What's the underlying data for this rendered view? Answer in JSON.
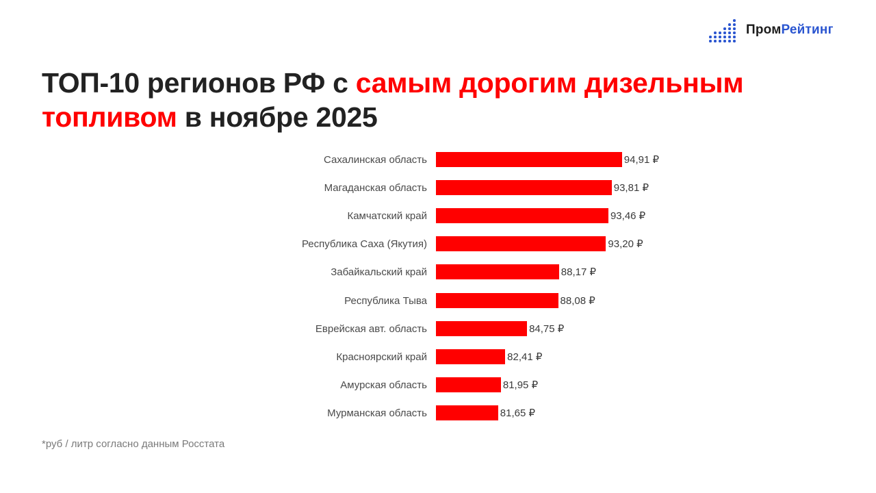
{
  "brand": {
    "logo_icon": "dot-bars-icon",
    "name_part1": "Пром",
    "name_part2": "Рейтинг",
    "accent_color": "#2a55d0"
  },
  "title": {
    "part1": "ТОП-10 регионов РФ с ",
    "highlight1": "самым дорогим дизельным",
    "highlight2": "топливом",
    "part2": " в ноябре 2025",
    "highlight_color": "#ff0000"
  },
  "footnote": "*руб / литр согласно данным Росстата",
  "chart_data": {
    "type": "bar",
    "orientation": "horizontal",
    "title": "ТОП-10 регионов РФ с самым дорогим дизельным топливом в ноябре 2025",
    "xlabel": "",
    "ylabel": "",
    "unit": "руб / литр",
    "grid": false,
    "legend": null,
    "bar_color": "#ff0000",
    "categories": [
      "Сахалинская область",
      "Магаданская область",
      "Камчатский край",
      "Республика Саха (Якутия)",
      "Забайкальский край",
      "Республика Тыва",
      "Еврейская авт. область",
      "Красноярский край",
      "Амурская область",
      "Мурманская область"
    ],
    "values": [
      94.91,
      93.81,
      93.46,
      93.2,
      88.17,
      88.08,
      84.75,
      82.41,
      81.95,
      81.65
    ],
    "value_labels": [
      "94,91 ₽",
      "93,81 ₽",
      "93,46 ₽",
      "93,20 ₽",
      "88,17 ₽",
      "88,08 ₽",
      "84,75 ₽",
      "82,41 ₽",
      "81,95 ₽",
      "81,65 ₽"
    ],
    "xlim": [
      75,
      95
    ]
  }
}
